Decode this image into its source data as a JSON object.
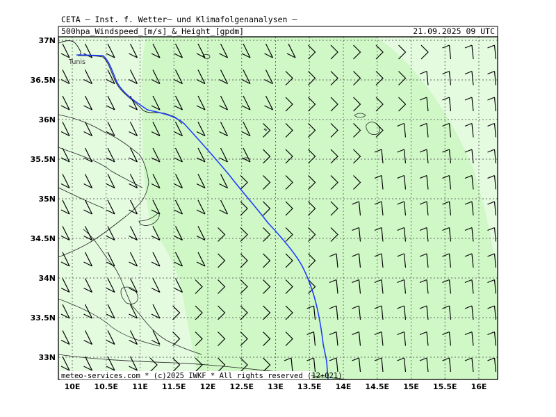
{
  "header": {
    "title": "CETA – Inst. f. Wetter– und Klimafolgenanalysen –",
    "parameter": "500hpa_Windspeed_[m/s]_&_Height_[gpdm]",
    "datetime": "21.09.2025 09 UTC"
  },
  "map": {
    "lon_ticks": [
      "10E",
      "10.5E",
      "11E",
      "11.5E",
      "12E",
      "12.5E",
      "13E",
      "13.5E",
      "14E",
      "14.5E",
      "15E",
      "15.5E",
      "16E"
    ],
    "lat_ticks": [
      "37N",
      "36.5N",
      "36N",
      "35.5N",
      "35N",
      "34.5N",
      "34N",
      "33.5N",
      "33N"
    ],
    "place_label": "Tunis",
    "footer": "meteo-services.com * (c)2025 IWKF * All rights reserved (12+021)",
    "colors": {
      "frame": "#000000",
      "light_green": "#e4fbe0",
      "mid_green": "#cff8c6",
      "height_contour": "#1e3cff",
      "coastline": "#222222",
      "grid": "#666666"
    }
  }
}
